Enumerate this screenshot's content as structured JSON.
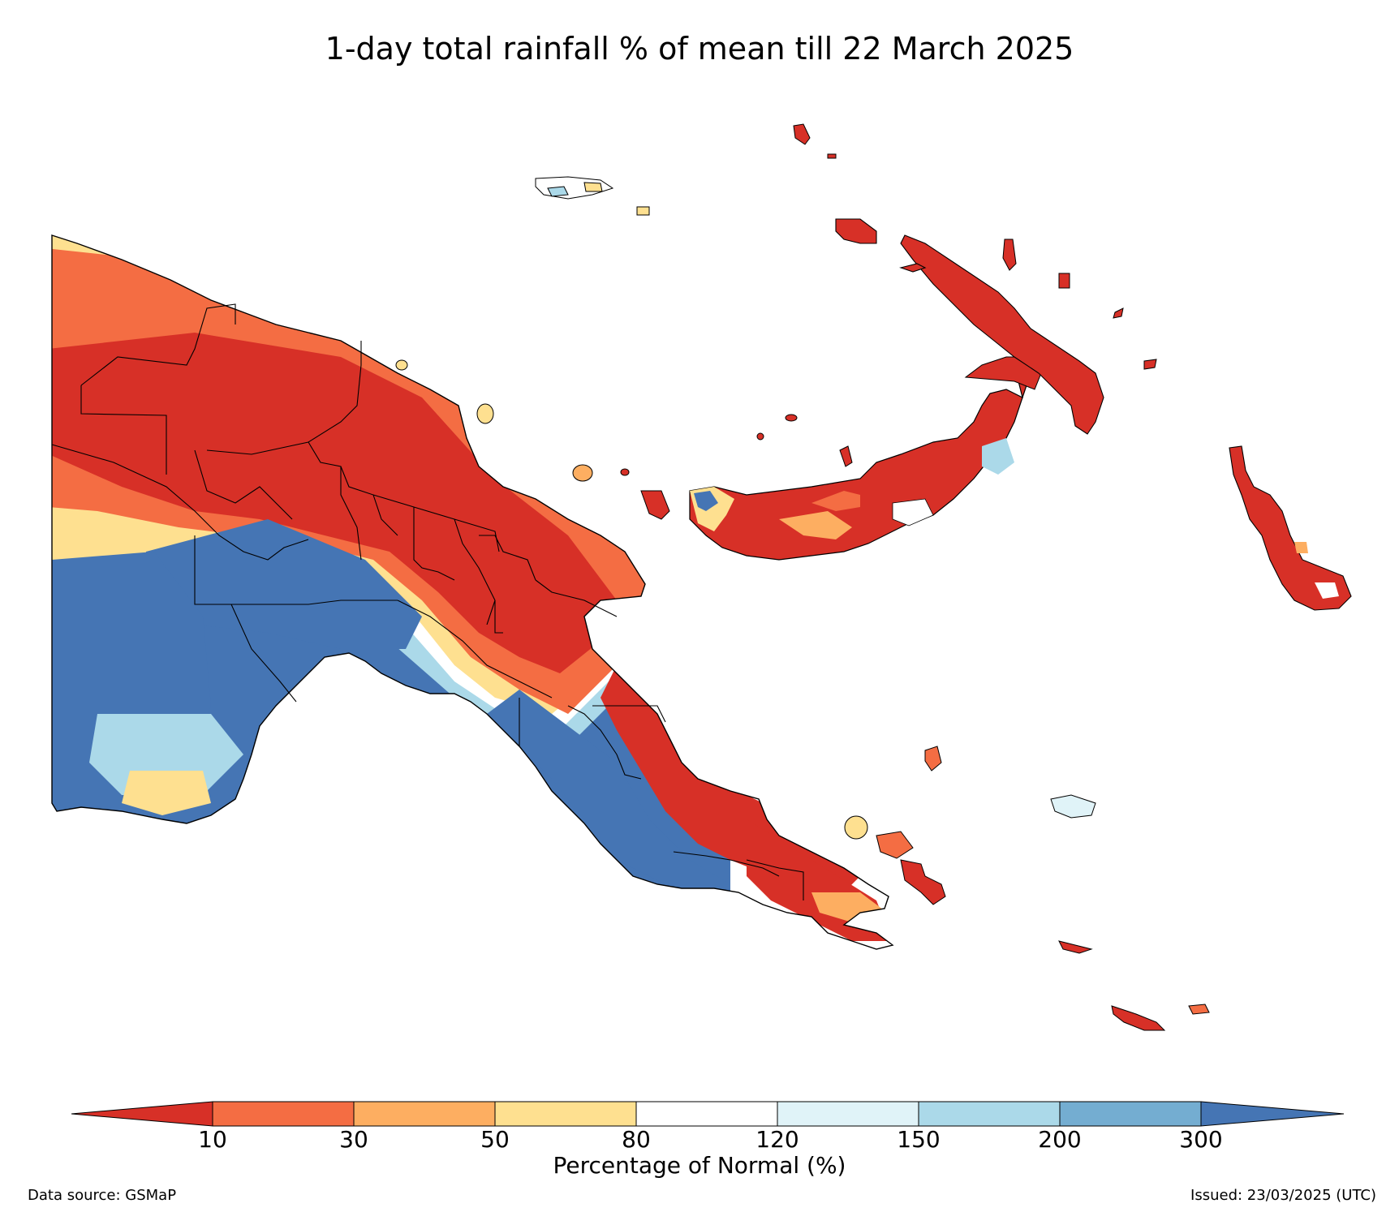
{
  "title": "1-day total rainfall % of mean till 22 March 2025",
  "colorbar": {
    "label": "Percentage of Normal (%)",
    "ticks": [
      "10",
      "30",
      "50",
      "80",
      "120",
      "150",
      "200",
      "300"
    ],
    "colors": {
      "below_10": "#d73027",
      "10_30": "#f46d43",
      "30_50": "#fdae61",
      "50_80": "#fee090",
      "80_120": "#ffffff",
      "120_150": "#e0f3f8",
      "150_200": "#abd9e9",
      "200_300": "#74add1",
      "above_300": "#4575b4"
    }
  },
  "footer": {
    "source": "Data source: GSMaP",
    "issued": "Issued: 23/03/2025 (UTC)"
  }
}
